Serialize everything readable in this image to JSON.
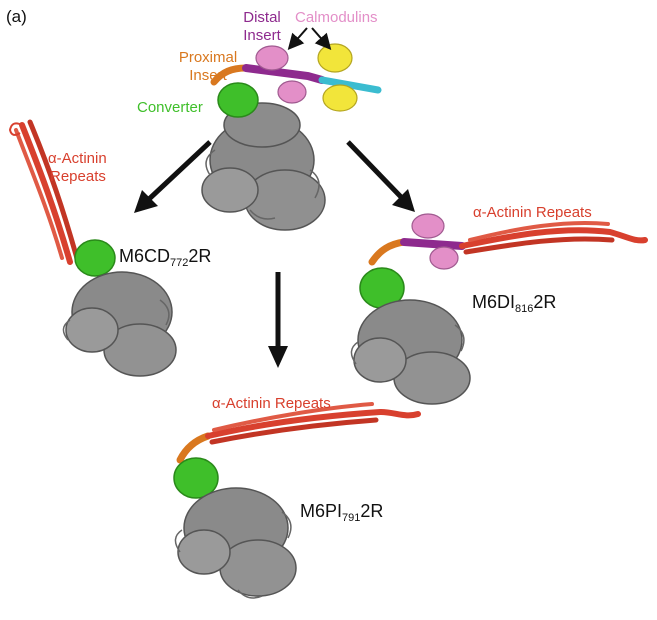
{
  "panel_label": "(a)",
  "labels": {
    "distal_insert_line1": "Distal",
    "distal_insert_line2": "Insert",
    "calmodulins": "Calmodulins",
    "proximal_insert_line1": "Proximal",
    "proximal_insert_line2": "Insert",
    "converter": "Converter",
    "actinin_left_line1": "α-Actinin",
    "actinin_left_line2": "Repeats",
    "actinin_right": "α-Actinin Repeats",
    "actinin_bottom": "α-Actinin Repeats"
  },
  "constructs": {
    "left": {
      "prefix": "M6CD",
      "sub": "772",
      "suffix": "2R"
    },
    "right": {
      "prefix": "M6DI",
      "sub": "816",
      "suffix": "2R"
    },
    "bottom": {
      "prefix": "M6PI",
      "sub": "791",
      "suffix": "2R"
    }
  },
  "colors": {
    "distal_insert": "#8e2a8e",
    "calmodulin": "#e38fc8",
    "calmodulin_2": "#f2e53a",
    "lever_cyan": "#3bbcd0",
    "proximal_insert": "#d9781f",
    "converter": "#3fbf2a",
    "actinin": "#d8402e",
    "motor": "#8a8a8a"
  },
  "icons": {
    "arrow": "arrow-down-icon"
  }
}
